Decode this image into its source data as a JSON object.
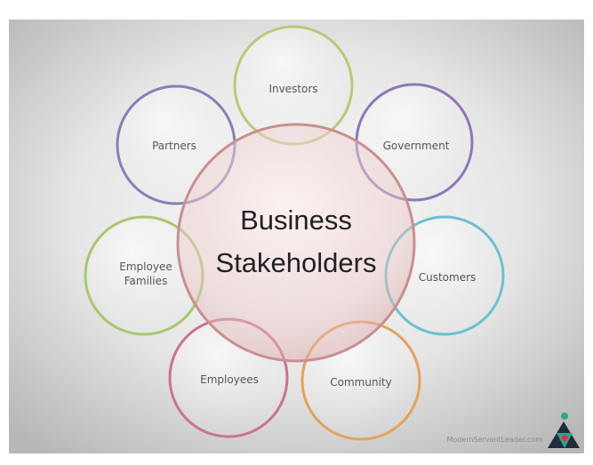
{
  "diagram": {
    "center": {
      "line1": "Business",
      "line2": "Stakeholders"
    },
    "nodes": [
      {
        "id": "investors",
        "label": "Investors",
        "color": "#b9c97a"
      },
      {
        "id": "government",
        "label": "Government",
        "color": "#8e78b8"
      },
      {
        "id": "customers",
        "label": "Customers",
        "color": "#6cc0cc"
      },
      {
        "id": "community",
        "label": "Community",
        "color": "#e3a25c"
      },
      {
        "id": "employees",
        "label": "Employees",
        "color": "#c9748c"
      },
      {
        "id": "families",
        "label_line1": "Employee",
        "label_line2": "Families",
        "color": "#a8c76e"
      },
      {
        "id": "partners",
        "label": "Partners",
        "color": "#8a7eb8"
      }
    ],
    "watermark": "ModernServantLeader.com"
  }
}
